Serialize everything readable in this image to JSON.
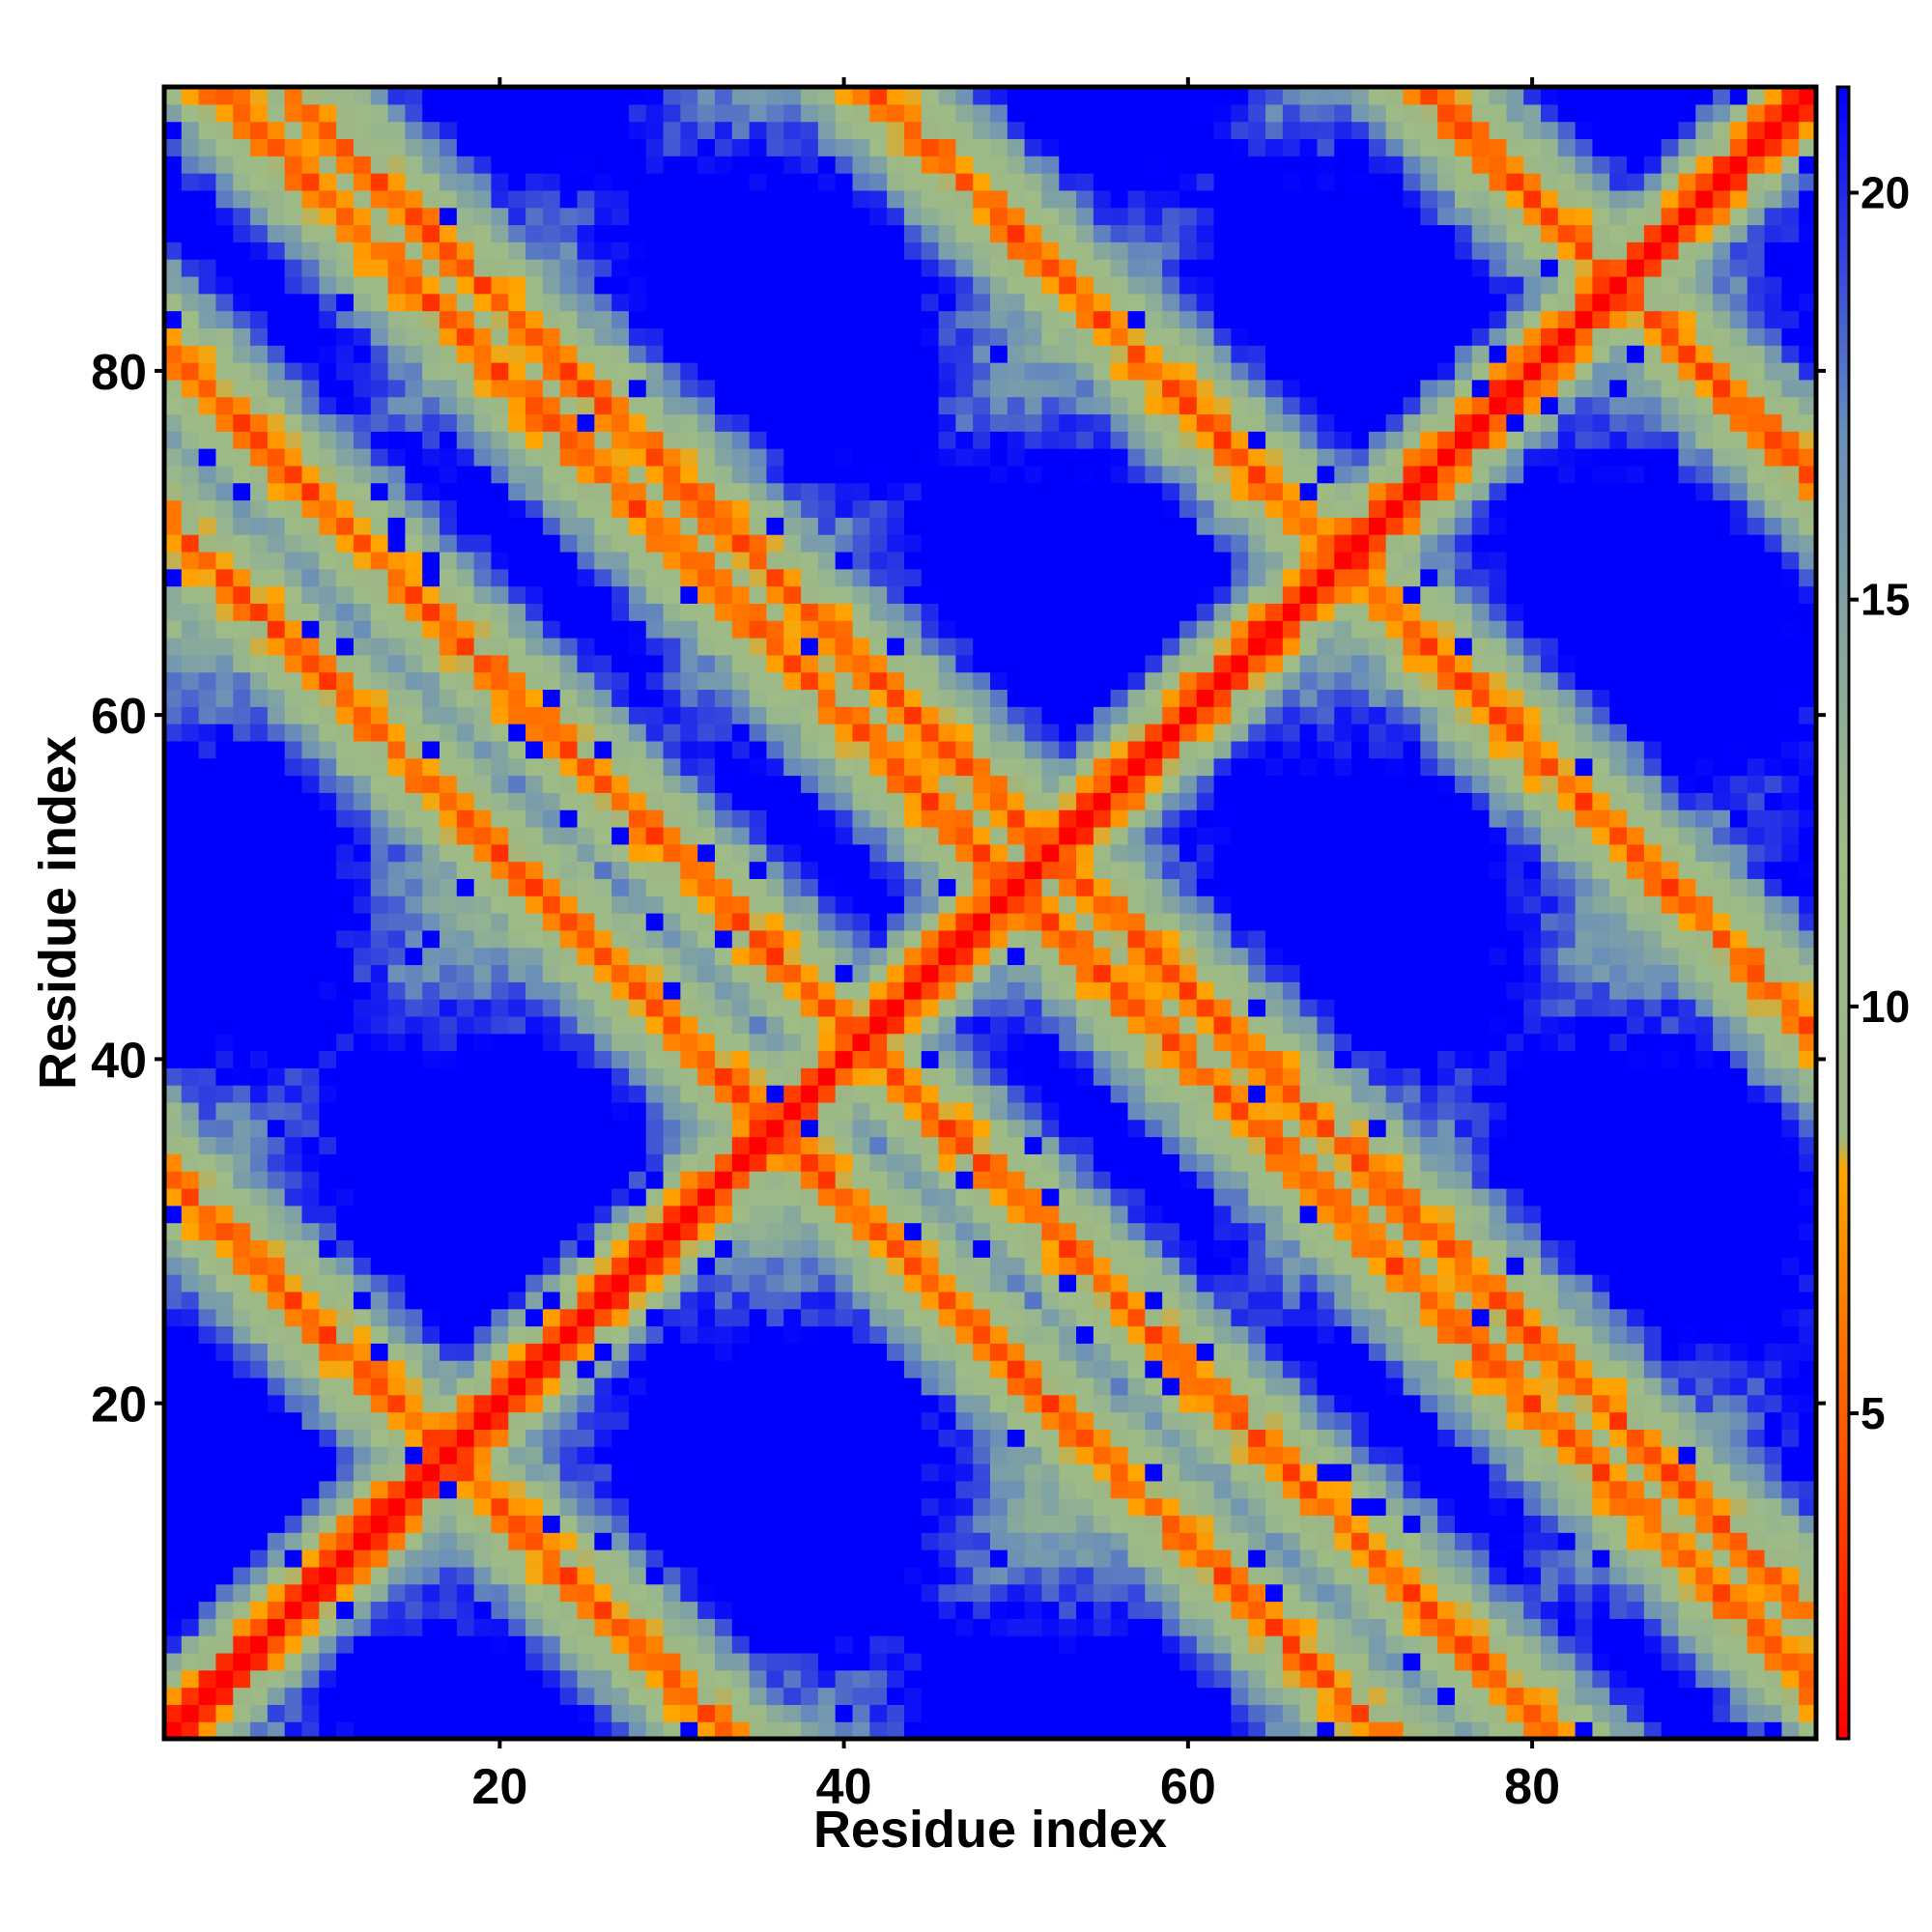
{
  "chart_data": {
    "type": "heatmap",
    "title": "",
    "xlabel": "Residue index",
    "ylabel": "Residue index",
    "n_residues": 96,
    "xlim": [
      1,
      96
    ],
    "ylim": [
      1,
      96
    ],
    "x_ticks": [
      20,
      40,
      60,
      80
    ],
    "y_ticks": [
      20,
      40,
      60,
      80
    ],
    "grid": false,
    "legend": "colorbar-right",
    "colorbar": {
      "range": [
        1,
        21.3
      ],
      "ticks": [
        5,
        10,
        15,
        20
      ],
      "stops": [
        {
          "value": 1.0,
          "color": "#ff0000"
        },
        {
          "value": 8.0,
          "color": "#ffa500"
        },
        {
          "value": 8.4,
          "color": "#9cb785"
        },
        {
          "value": 12.0,
          "color": "#9fbc86"
        },
        {
          "value": 17.0,
          "color": "#6a90b8"
        },
        {
          "value": 21.3,
          "color": "#0000ff"
        }
      ]
    },
    "saturation_color": "#0000ff",
    "structure_description": "Symmetric residue-residue distance map (Å): main diagonal distance 0 (red), strong anti-diagonal contact band and multiple off-diagonal contact bands forming diamond pattern; distances above ~21 saturate to blue.",
    "contact_bands": [
      {
        "type": "main-diagonal",
        "i_plus_j": null,
        "width": 1
      },
      {
        "type": "anti-parallel",
        "i_plus_j": 34
      },
      {
        "type": "anti-parallel",
        "i_plus_j": 72
      },
      {
        "type": "anti-parallel",
        "i_plus_j": 104
      },
      {
        "type": "anti-parallel",
        "i_plus_j": 138
      },
      {
        "type": "anti-parallel",
        "i_plus_j": 170
      },
      {
        "type": "anti-parallel",
        "i_plus_j": 82
      },
      {
        "type": "anti-parallel",
        "i_plus_j": 100
      }
    ]
  }
}
